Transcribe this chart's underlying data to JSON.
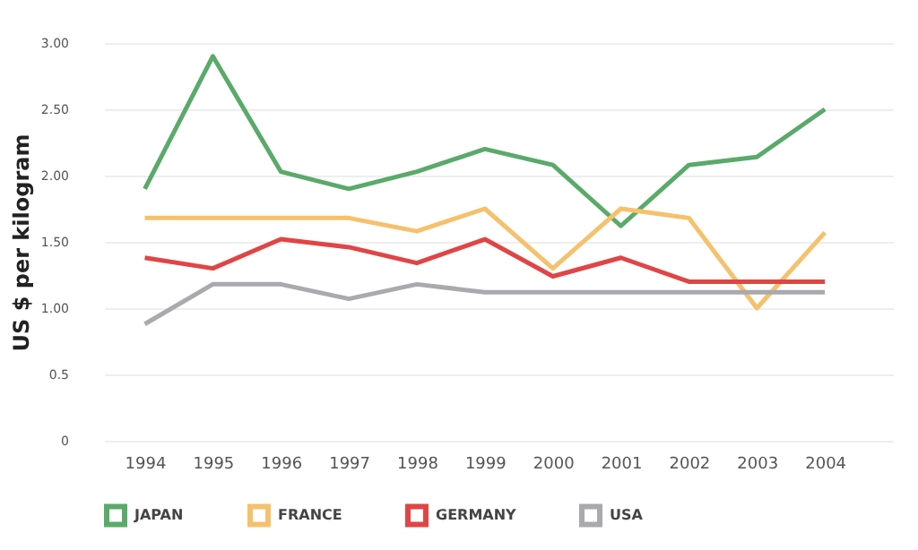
{
  "chart_data": {
    "type": "line",
    "ylabel": "US $ per kilogram",
    "categories": [
      "1994",
      "1995",
      "1996",
      "1997",
      "1998",
      "1999",
      "2000",
      "2001",
      "2002",
      "2003",
      "2004"
    ],
    "series": [
      {
        "name": "JAPAN",
        "color": "#5aaa6a",
        "values": [
          1.9,
          2.9,
          2.03,
          1.9,
          2.03,
          2.2,
          2.08,
          1.62,
          2.08,
          2.14,
          2.5
        ]
      },
      {
        "name": "FRANCE",
        "color": "#f5c16c",
        "values": [
          1.68,
          1.68,
          1.68,
          1.68,
          1.58,
          1.75,
          1.3,
          1.75,
          1.68,
          1.0,
          1.57
        ]
      },
      {
        "name": "GERMANY",
        "color": "#e04545",
        "values": [
          1.38,
          1.3,
          1.52,
          1.46,
          1.34,
          1.52,
          1.24,
          1.38,
          1.2,
          1.2,
          1.2
        ]
      },
      {
        "name": "USA",
        "color": "#a9a9ae",
        "values": [
          0.88,
          1.18,
          1.18,
          1.07,
          1.18,
          1.12,
          1.12,
          1.12,
          1.12,
          1.12,
          1.12
        ]
      }
    ],
    "ylim": [
      0,
      3.0
    ],
    "yticks": [
      0,
      {
        "value": 0.5,
        "label": "0.5"
      },
      {
        "value": 1,
        "label": "1.00"
      },
      {
        "value": 1.5,
        "label": "1.50"
      },
      {
        "value": 2,
        "label": "2.00"
      },
      {
        "value": 2.5,
        "label": "2.50"
      },
      {
        "value": 3,
        "label": "3.00"
      }
    ],
    "grid": "y",
    "legend": "bottom",
    "marker": "none",
    "line_style": "solid"
  }
}
